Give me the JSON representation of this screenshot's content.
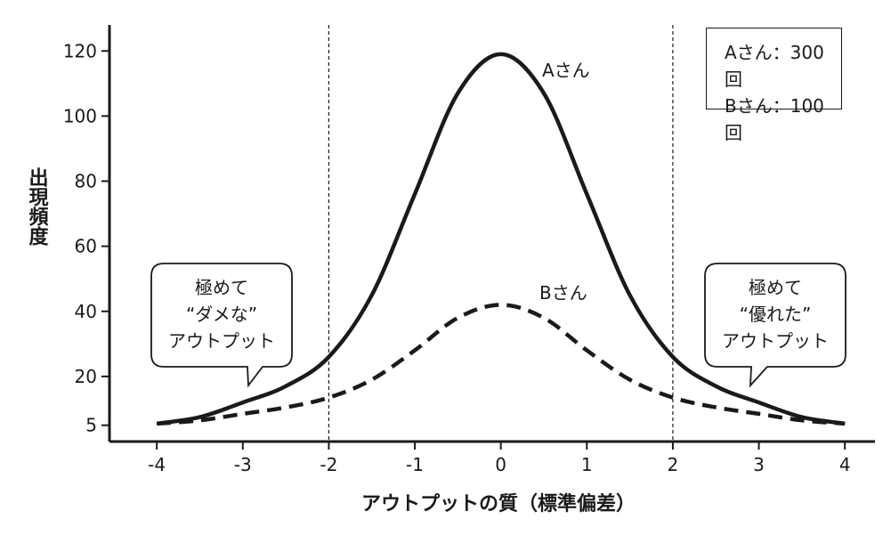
{
  "chart_data": {
    "type": "line",
    "xlabel": "アウトプットの質（標準偏差）",
    "ylabel": "出現頻度",
    "xlim": [
      -4.55,
      4.35
    ],
    "ylim": [
      0,
      128
    ],
    "xticks": [
      "-4",
      "-3",
      "-2",
      "-1",
      "0",
      "1",
      "2",
      "3",
      "4"
    ],
    "yticks": [
      "5",
      "20",
      "40",
      "60",
      "80",
      "100",
      "120"
    ],
    "reference_lines_x": [
      -2,
      2
    ],
    "series": [
      {
        "name": "Aさん",
        "style": "solid",
        "x": [
          -4,
          -3.5,
          -3,
          -2.5,
          -2,
          -1.5,
          -1,
          -0.5,
          0,
          0.5,
          1,
          1.5,
          2,
          2.5,
          3,
          3.5,
          4
        ],
        "y": [
          5.5,
          7.5,
          12,
          17,
          26,
          45,
          76,
          107,
          119,
          107,
          76,
          45,
          26,
          17,
          12,
          7.5,
          5.5
        ]
      },
      {
        "name": "Bさん",
        "style": "dashed",
        "x": [
          -4,
          -3.5,
          -3,
          -2.5,
          -2,
          -1.5,
          -1,
          -0.5,
          0,
          0.5,
          1,
          1.5,
          2,
          2.5,
          3,
          3.5,
          4
        ],
        "y": [
          5.5,
          6.5,
          8.5,
          10.5,
          13.5,
          19,
          28,
          38,
          42,
          38,
          28,
          19,
          13.5,
          10.5,
          8.5,
          6.5,
          5.5
        ]
      }
    ],
    "legend": {
      "lines": [
        "Aさん：300回",
        "Bさん：100回"
      ],
      "placement": "top-right"
    },
    "annotations": [
      {
        "name": "left",
        "lines": [
          "極めて",
          "“ダメな”",
          "アウトプット"
        ]
      },
      {
        "name": "right",
        "lines": [
          "極めて",
          "“優れた”",
          "アウトプット"
        ]
      }
    ]
  }
}
